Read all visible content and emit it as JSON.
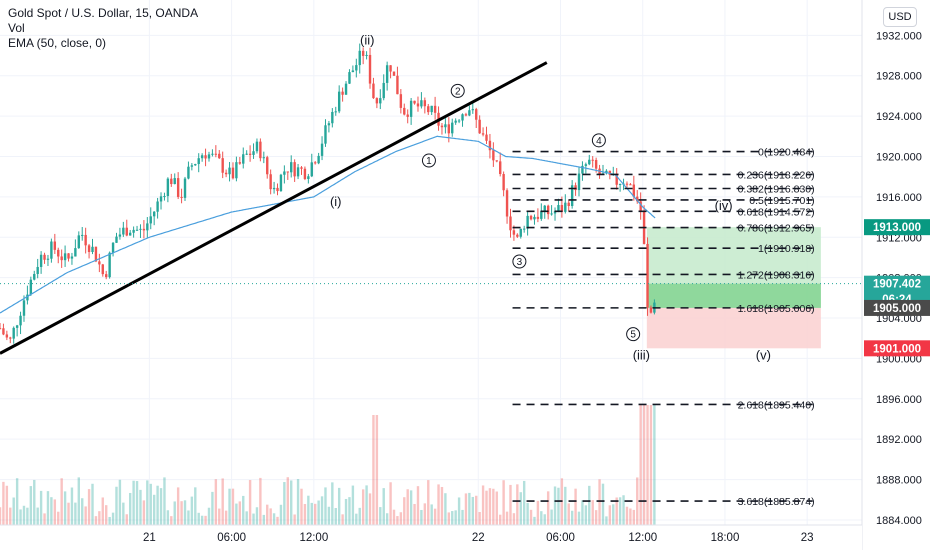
{
  "legend": {
    "title": "Gold Spot / U.S. Dollar, 15, OANDA",
    "vol": "Vol",
    "ema": "EMA (50, close, 0)"
  },
  "currency_button": "USD",
  "chart_data": {
    "type": "candlestick",
    "title": "Gold Spot / U.S. Dollar, 15, OANDA",
    "yaxis_ticks": [
      "1932.000",
      "1928.000",
      "1924.000",
      "1920.000",
      "1916.000",
      "1912.000",
      "1908.000",
      "1904.000",
      "1900.000",
      "1896.000",
      "1892.000",
      "1888.000",
      "1884.000"
    ],
    "ytick_values": [
      1932,
      1928,
      1924,
      1920,
      1916,
      1912,
      1908,
      1904,
      1900,
      1896,
      1892,
      1888,
      1884
    ],
    "ylim": [
      1883.5,
      1935.5
    ],
    "xaxis_ticks": [
      "21",
      "06:00",
      "12:00",
      "22",
      "06:00",
      "12:00",
      "18:00",
      "23"
    ],
    "xtick_hours": [
      0,
      6,
      12,
      24,
      30,
      36,
      42,
      48
    ],
    "xlim_hours": [
      -10.9,
      52
    ],
    "price_path": [
      [
        -10.9,
        1903.0
      ],
      [
        -10.2,
        1901.5
      ],
      [
        -9.0,
        1906.5
      ],
      [
        -8.0,
        1910.0
      ],
      [
        -7.0,
        1911.0
      ],
      [
        -6.0,
        1909.5
      ],
      [
        -5.0,
        1912.5
      ],
      [
        -4.0,
        1910.5
      ],
      [
        -3.3,
        1908.0
      ],
      [
        -2.5,
        1912.0
      ],
      [
        -1.5,
        1913.0
      ],
      [
        -0.5,
        1912.5
      ],
      [
        0.5,
        1915.0
      ],
      [
        1.5,
        1918.0
      ],
      [
        2.3,
        1916.0
      ],
      [
        3.0,
        1919.0
      ],
      [
        4.0,
        1920.5
      ],
      [
        5.0,
        1919.5
      ],
      [
        6.0,
        1918.0
      ],
      [
        7.0,
        1920.0
      ],
      [
        8.0,
        1921.0
      ],
      [
        9.0,
        1916.5
      ],
      [
        10.0,
        1919.0
      ],
      [
        11.5,
        1918.5
      ],
      [
        12.3,
        1920.5
      ],
      [
        13.0,
        1923.0
      ],
      [
        14.0,
        1926.5
      ],
      [
        14.8,
        1928.5
      ],
      [
        15.7,
        1930.5
      ],
      [
        16.5,
        1925.0
      ],
      [
        17.5,
        1929.5
      ],
      [
        18.5,
        1924.5
      ],
      [
        19.5,
        1925.0
      ],
      [
        20.5,
        1924.5
      ],
      [
        21.5,
        1922.5
      ],
      [
        22.5,
        1924.0
      ],
      [
        23.3,
        1925.0
      ],
      [
        24.0,
        1923.0
      ],
      [
        24.5,
        1921.5
      ],
      [
        25.2,
        1919.5
      ],
      [
        25.8,
        1916.5
      ],
      [
        26.3,
        1913.5
      ],
      [
        26.8,
        1911.5
      ],
      [
        27.5,
        1914.0
      ],
      [
        28.5,
        1914.3
      ],
      [
        29.5,
        1914.5
      ],
      [
        30.3,
        1915.0
      ],
      [
        31.0,
        1917.0
      ],
      [
        32.0,
        1919.5
      ],
      [
        33.0,
        1918.0
      ],
      [
        34.0,
        1917.5
      ],
      [
        34.8,
        1917.8
      ],
      [
        35.5,
        1916.0
      ],
      [
        36.0,
        1914.0
      ],
      [
        36.3,
        1905.0
      ],
      [
        36.5,
        1904.0
      ],
      [
        36.8,
        1905.5
      ],
      [
        37.0,
        1907.4
      ]
    ],
    "ema_label": "EMA (50, close, 0)",
    "ema_path": [
      [
        -10.9,
        1904.5
      ],
      [
        -6.0,
        1908.5
      ],
      [
        0.0,
        1912.0
      ],
      [
        6.0,
        1914.5
      ],
      [
        12.0,
        1916.0
      ],
      [
        15.0,
        1918.5
      ],
      [
        18.0,
        1920.5
      ],
      [
        21.0,
        1922.0
      ],
      [
        24.0,
        1921.5
      ],
      [
        26.0,
        1920.0
      ],
      [
        28.0,
        1919.8
      ],
      [
        30.0,
        1919.3
      ],
      [
        32.0,
        1918.8
      ],
      [
        34.0,
        1918.2
      ],
      [
        36.0,
        1915.0
      ],
      [
        37.0,
        1913.8
      ]
    ],
    "trendline": [
      [
        -10.9,
        1900.5
      ],
      [
        29.0,
        1929.3
      ]
    ],
    "fibonacci": {
      "x_start": 26.5,
      "x_end": 48.4,
      "levels": [
        {
          "ratio": "0",
          "price": 1920.484,
          "label": "0(1920.484)"
        },
        {
          "ratio": "0.236",
          "price": 1918.226,
          "label": "0.236(1918.226)"
        },
        {
          "ratio": "0.382",
          "price": 1916.83,
          "label": "0.382(1916.830)"
        },
        {
          "ratio": "0.5",
          "price": 1915.701,
          "label": "0.5(1915.701)"
        },
        {
          "ratio": "0.618",
          "price": 1914.572,
          "label": "0.618(1914.572)"
        },
        {
          "ratio": "0.786",
          "price": 1912.965,
          "label": "0.786(1912.965)"
        },
        {
          "ratio": "1",
          "price": 1910.918,
          "label": "1(1910.918)"
        },
        {
          "ratio": "1.272",
          "price": 1908.316,
          "label": "1.272(1908.316)"
        },
        {
          "ratio": "1.618",
          "price": 1905.006,
          "label": "1.618(1905.006)"
        },
        {
          "ratio": "2.618",
          "price": 1895.44,
          "label": "2.618(1895.440)"
        },
        {
          "ratio": "3.618",
          "price": 1885.874,
          "label": "3.618(1885.874)"
        }
      ]
    },
    "position": {
      "x_start": 36.3,
      "x_end": 49.0,
      "target": 1913.0,
      "entry": 1905.0,
      "stop": 1901.0
    },
    "wave_labels": [
      {
        "text": "(ii)",
        "x": 15.9,
        "y": 1931.5,
        "circled": false
      },
      {
        "text": "(i)",
        "x": 13.6,
        "y": 1915.5,
        "circled": false
      },
      {
        "text": "2",
        "x": 22.5,
        "y": 1926.5,
        "circled": true
      },
      {
        "text": "1",
        "x": 20.4,
        "y": 1919.6,
        "circled": true
      },
      {
        "text": "3",
        "x": 27.0,
        "y": 1909.6,
        "circled": true
      },
      {
        "text": "4",
        "x": 32.8,
        "y": 1921.6,
        "circled": true
      },
      {
        "text": "(iv)",
        "x": 41.9,
        "y": 1915.1,
        "circled": false
      },
      {
        "text": "5",
        "x": 35.3,
        "y": 1902.4,
        "circled": true
      },
      {
        "text": "(iii)",
        "x": 35.9,
        "y": 1900.3,
        "circled": false
      },
      {
        "text": "(v)",
        "x": 44.8,
        "y": 1900.3,
        "circled": false
      }
    ],
    "price_tags": [
      {
        "label": "1913.000",
        "value": 1913.0,
        "color": "#089981"
      },
      {
        "label": "1907.402",
        "value": 1907.402,
        "color": "#26a69a"
      },
      {
        "label": "06:24",
        "value": 1905.9,
        "color": "#26a69a"
      },
      {
        "label": "1905.000",
        "value": 1905.0,
        "color": "#4a4a4a"
      },
      {
        "label": "1901.000",
        "value": 1901.0,
        "color": "#f23645"
      }
    ],
    "current_price": 1907.402,
    "colors": {
      "up": "#26a69a",
      "down": "#ef5350",
      "ema": "#4a9fdd",
      "trendline": "#000000",
      "fib": "#131722",
      "target_fill": "#c8ebce",
      "stop_fill": "#fbd3d3",
      "grid": "#f0f3fa"
    },
    "volume_note": "volume histogram shown at bottom of price pane"
  }
}
